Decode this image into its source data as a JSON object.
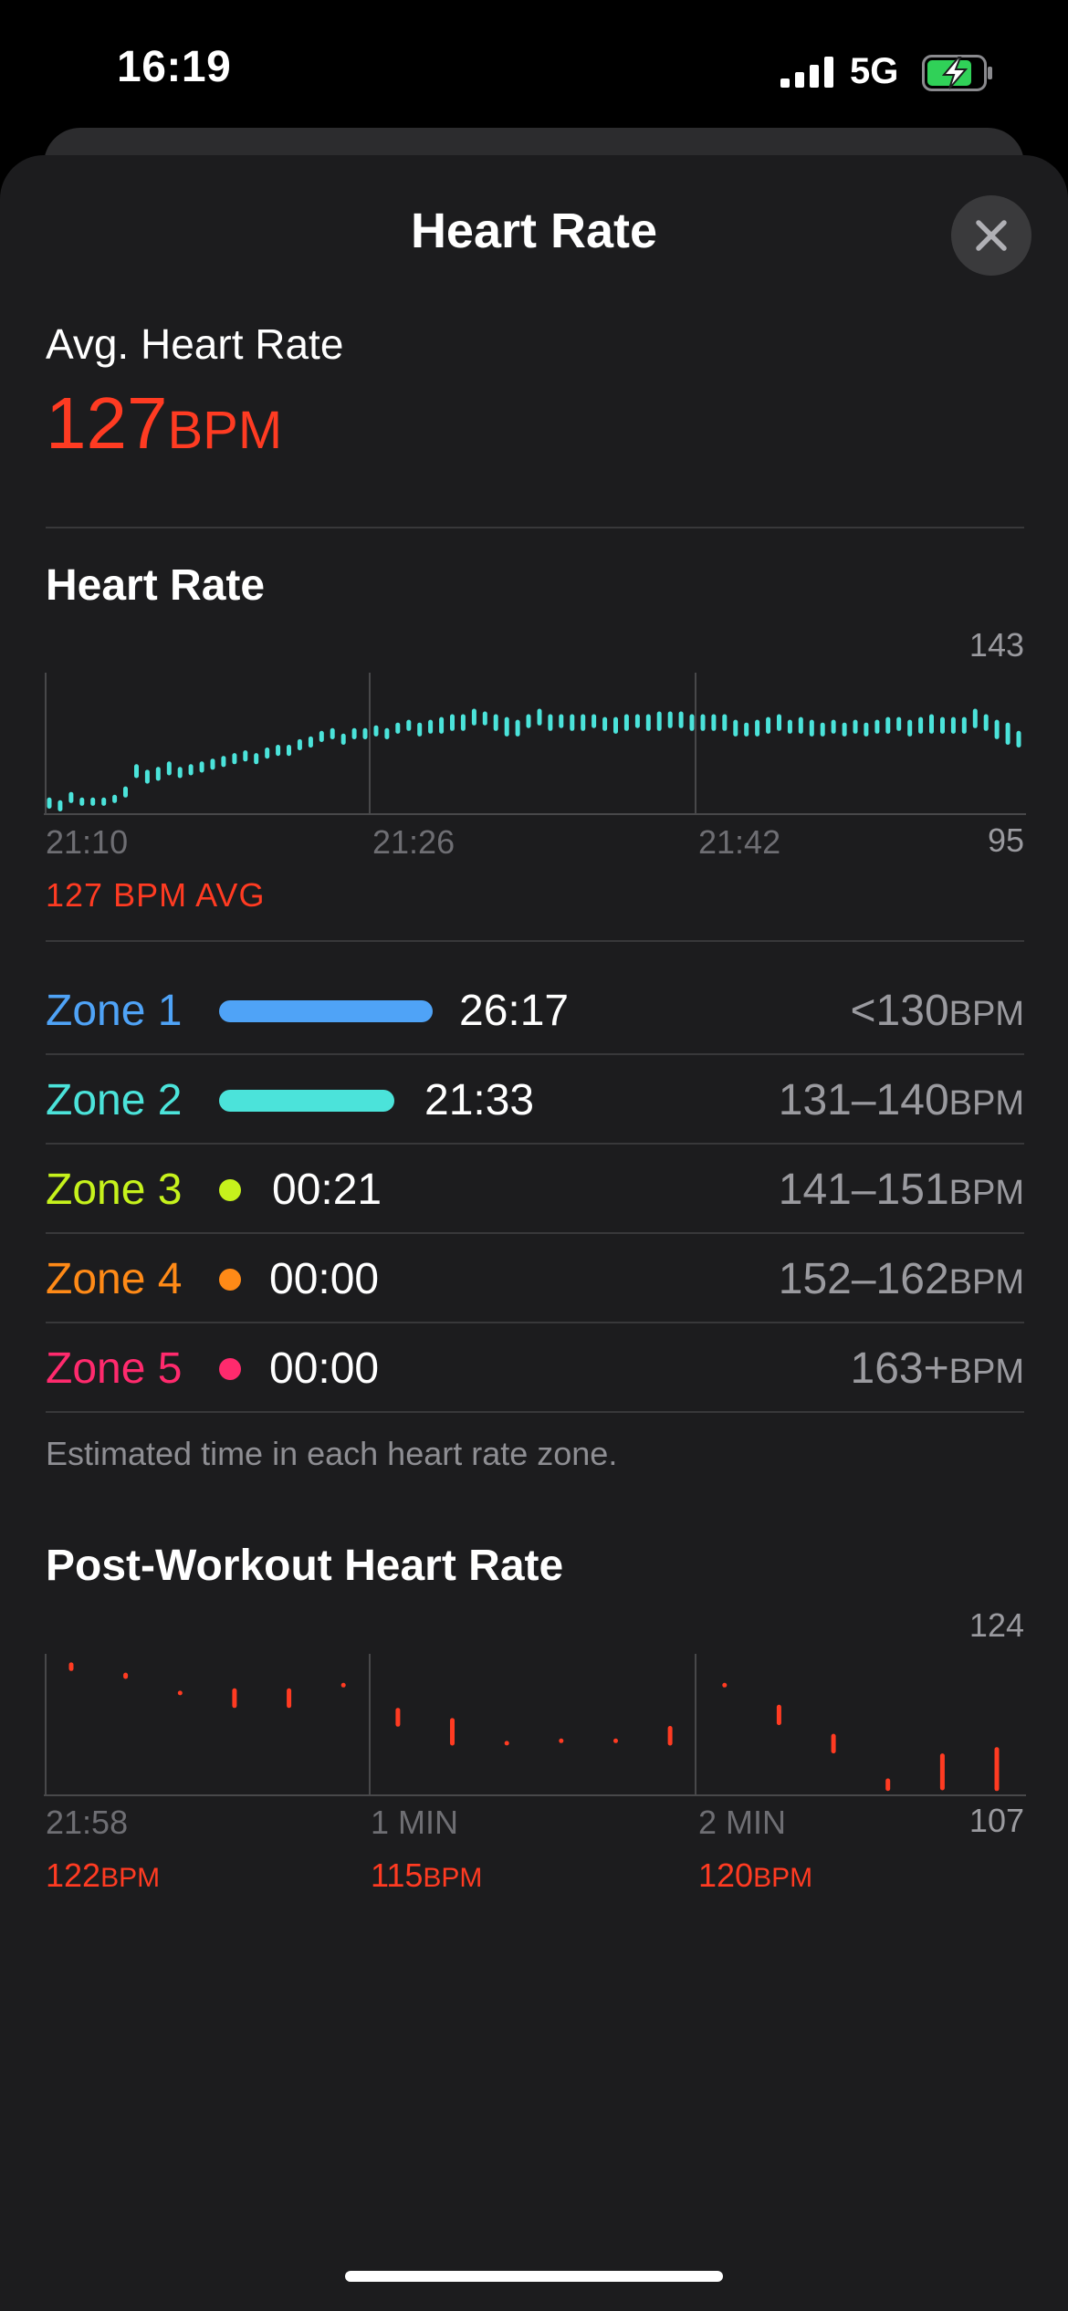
{
  "status_bar": {
    "time": "16:19",
    "network": "5G",
    "battery_state": "charging"
  },
  "sheet": {
    "title": "Heart Rate",
    "close_icon": "close-icon"
  },
  "summary": {
    "avg_label": "Avg. Heart Rate",
    "avg_value": "127",
    "avg_unit": "BPM"
  },
  "heart_rate_chart": {
    "title": "Heart Rate",
    "y_max_label": "143",
    "y_min_label": "95",
    "x_labels": [
      "21:10",
      "21:26",
      "21:42"
    ],
    "avg_caption": "127 BPM AVG"
  },
  "zones": [
    {
      "name": "Zone 1",
      "time": "26:17",
      "range": "<130",
      "unit": "BPM",
      "color": "#4fa3f7",
      "bar_fraction": 1.0
    },
    {
      "name": "Zone 2",
      "time": "21:33",
      "range": "131–140",
      "unit": "BPM",
      "color": "#4be3da",
      "bar_fraction": 0.82
    },
    {
      "name": "Zone 3",
      "time": "00:21",
      "range": "141–151",
      "unit": "BPM",
      "color": "#c6f21c",
      "bar_fraction": 0
    },
    {
      "name": "Zone 4",
      "time": "00:00",
      "range": "152–162",
      "unit": "BPM",
      "color": "#ff8a17",
      "bar_fraction": 0
    },
    {
      "name": "Zone 5",
      "time": "00:00",
      "range": "163+",
      "unit": "BPM",
      "color": "#ff2a6d",
      "bar_fraction": 0
    }
  ],
  "zones_footnote": "Estimated time in each heart rate zone.",
  "post_workout": {
    "title": "Post-Workout Heart Rate",
    "y_max_label": "124",
    "y_min_label": "107",
    "x_labels": [
      "21:58",
      "1 MIN",
      "2 MIN"
    ],
    "stats": [
      {
        "value": "122",
        "unit": "BPM"
      },
      {
        "value": "115",
        "unit": "BPM"
      },
      {
        "value": "120",
        "unit": "BPM"
      }
    ]
  },
  "chart_data": [
    {
      "type": "bar",
      "title": "Heart Rate",
      "xlabel": "",
      "ylabel": "",
      "ylim": [
        95,
        143
      ],
      "x_ticks": [
        "21:10",
        "21:26",
        "21:42"
      ],
      "average": 127,
      "series": [
        {
          "low": [
            96,
            95,
            98,
            97,
            97,
            97,
            98,
            100,
            107,
            105,
            106,
            108,
            107,
            108,
            109,
            110,
            111,
            112,
            113,
            112,
            114,
            115,
            115,
            117,
            118,
            120,
            121,
            119,
            121,
            121,
            122,
            121,
            123,
            124,
            122,
            123,
            123,
            124,
            124,
            126,
            126,
            124,
            122,
            122,
            125,
            126,
            124,
            125,
            124,
            124,
            125,
            124,
            123,
            124,
            125,
            124,
            124,
            125,
            125,
            124,
            124,
            124,
            124,
            122,
            122,
            122,
            123,
            124,
            123,
            123,
            122,
            122,
            123,
            122,
            123,
            122,
            123,
            123,
            124,
            122,
            123,
            123,
            123,
            123,
            123,
            125,
            124,
            121,
            119,
            118
          ],
          "high": [
            100,
            99,
            102,
            100,
            100,
            100,
            101,
            104,
            112,
            110,
            111,
            113,
            111,
            112,
            113,
            114,
            115,
            116,
            117,
            116,
            118,
            119,
            119,
            121,
            122,
            124,
            125,
            123,
            125,
            125,
            126,
            125,
            127,
            128,
            127,
            128,
            129,
            130,
            130,
            132,
            131,
            130,
            129,
            128,
            130,
            132,
            130,
            130,
            130,
            130,
            130,
            129,
            129,
            130,
            130,
            130,
            131,
            131,
            131,
            130,
            130,
            130,
            130,
            128,
            127,
            128,
            129,
            130,
            128,
            129,
            128,
            127,
            128,
            127,
            128,
            127,
            128,
            129,
            129,
            128,
            129,
            130,
            129,
            129,
            129,
            132,
            130,
            128,
            127,
            124
          ]
        }
      ]
    },
    {
      "type": "bar",
      "title": "Post-Workout Heart Rate",
      "xlabel": "",
      "ylabel": "",
      "ylim": [
        107,
        124
      ],
      "x_ticks": [
        "21:58",
        "1 MIN",
        "2 MIN"
      ],
      "series": [
        {
          "low": [
            122.5,
            121.5,
            119.5,
            117.8,
            117.8,
            120.5,
            115.4,
            113,
            113.1,
            113.4,
            113.4,
            113,
            120.5,
            115.6,
            112,
            107.2,
            107.3,
            107.2
          ],
          "high": [
            123.6,
            122.3,
            119.9,
            120.3,
            120.3,
            120.9,
            117.8,
            116.5,
            113.5,
            113.8,
            113.8,
            115.5,
            120.9,
            118.2,
            114.5,
            108.8,
            112,
            112.8
          ]
        }
      ]
    }
  ]
}
